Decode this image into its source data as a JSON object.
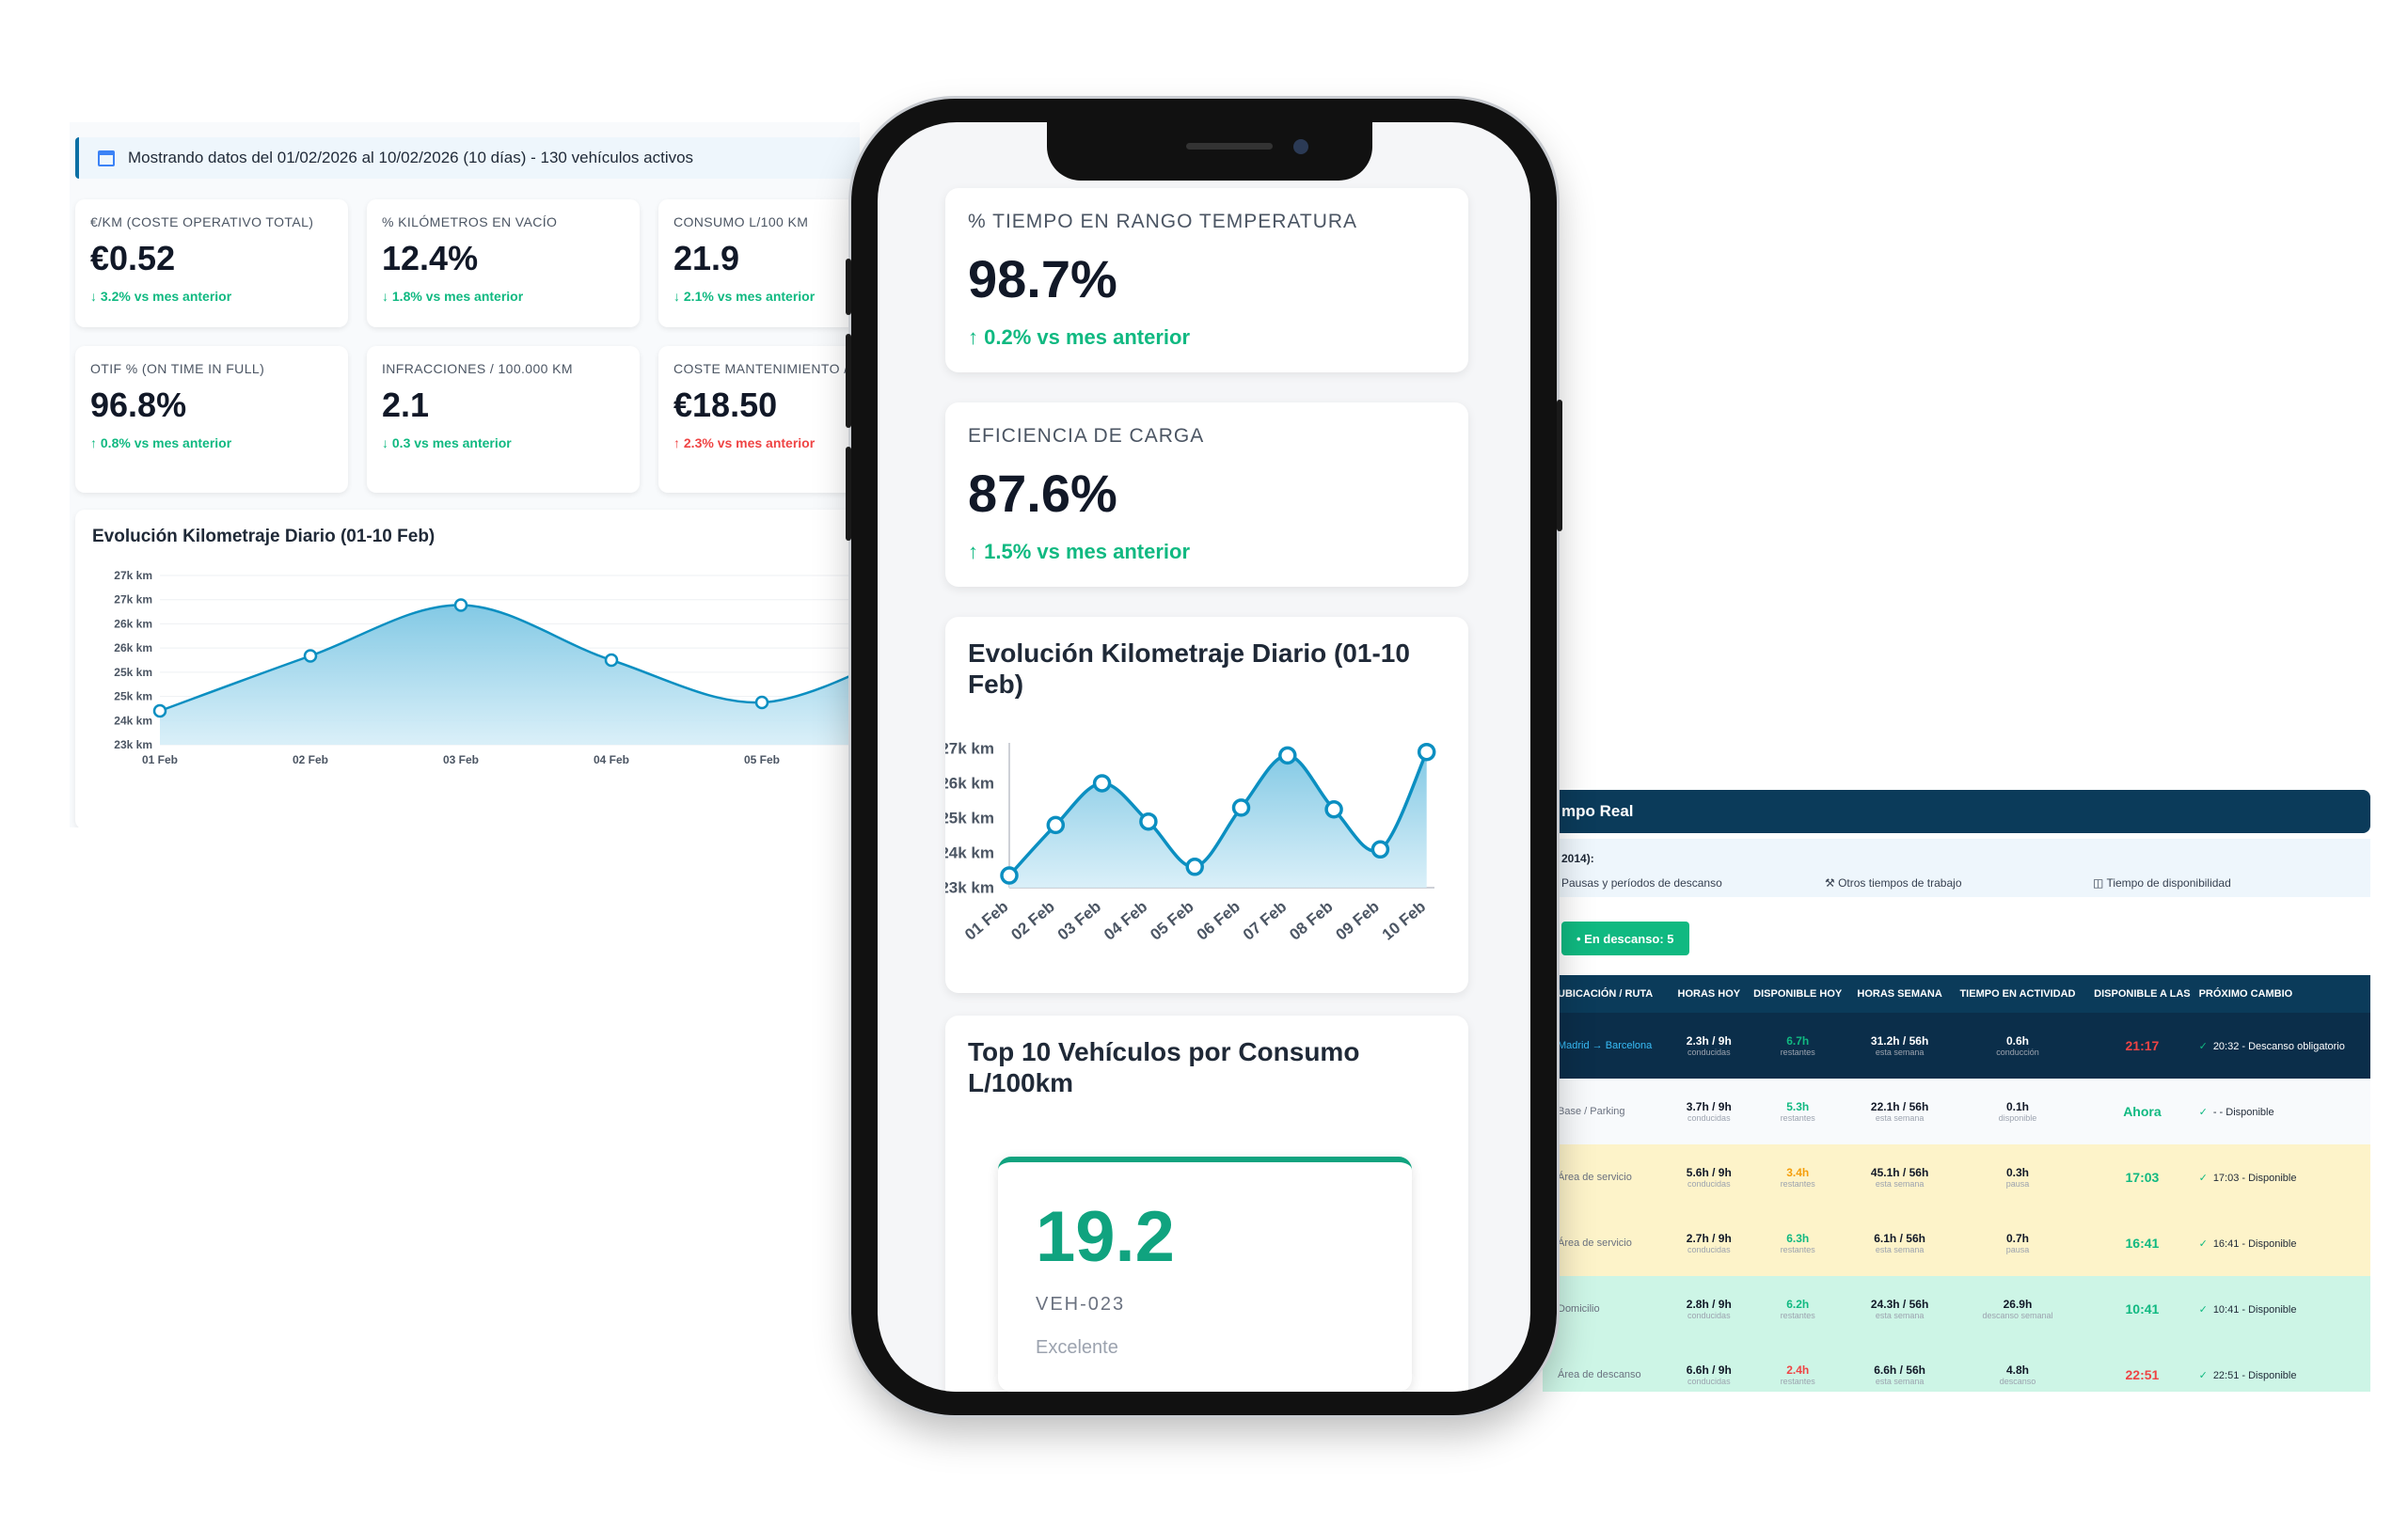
{
  "left": {
    "info": "Mostrando datos del 01/02/2026 al 10/02/2026 (10 días) - 130 vehículos activos",
    "kpis": [
      {
        "label": "€/KM (COSTE OPERATIVO TOTAL)",
        "value": "€0.52",
        "change": "↓ 3.2% vs mes anterior"
      },
      {
        "label": "% KILÓMETROS EN VACÍO",
        "value": "12.4%",
        "change": "↓ 1.8% vs mes anterior"
      },
      {
        "label": "CONSUMO L/100 KM",
        "value": "21.9",
        "change": "↓ 2.1% vs mes anterior"
      },
      {
        "label": "OTIF % (ON TIME IN FULL)",
        "value": "96.8%",
        "change": "↑ 0.8% vs mes anterior"
      },
      {
        "label": "INFRACCIONES / 100.000 KM",
        "value": "2.1",
        "change": "↓ 0.3 vs mes anterior"
      },
      {
        "label": "COSTE MANTENIMIENTO / KM",
        "value": "€18.50",
        "change": "↑ 2.3% vs mes anterior"
      }
    ],
    "chart_title": "Evolución Kilometraje Diario (01-10 Feb)"
  },
  "chart_data": [
    {
      "type": "area",
      "title": "Evolución Kilometraje Diario (01-10 Feb)",
      "y_tick_labels": [
        "23k km",
        "24k km",
        "25k km",
        "25k km",
        "26k km",
        "26k km",
        "27k km",
        "27k km"
      ],
      "x": [
        "01 Feb",
        "02 Feb",
        "03 Feb",
        "04 Feb",
        "05 Feb"
      ],
      "values": [
        23800,
        25100,
        26300,
        25000,
        24000
      ],
      "ylim": [
        23000,
        27000
      ],
      "grid": true,
      "color": "#0b8fc1"
    },
    {
      "type": "area",
      "title": "Evolución Kilometraje Diario (01-10 Feb)",
      "y_tick_labels": [
        "23k km",
        "24k km",
        "25k km",
        "26k km",
        "27k km"
      ],
      "x": [
        "01 Feb",
        "02 Feb",
        "03 Feb",
        "04 Feb",
        "05 Feb",
        "06 Feb",
        "07 Feb",
        "08 Feb",
        "09 Feb",
        "10 Feb"
      ],
      "values": [
        23350,
        24800,
        26000,
        24900,
        23600,
        25300,
        26800,
        25250,
        24100,
        26900
      ],
      "ylim": [
        23000,
        27000
      ],
      "grid": false,
      "color": "#0b8fc1"
    }
  ],
  "phone": {
    "cards": [
      {
        "label": "% TIEMPO EN RANGO TEMPERATURA",
        "value": "98.7%",
        "change": "↑ 0.2% vs mes anterior"
      },
      {
        "label": "EFICIENCIA DE CARGA",
        "value": "87.6%",
        "change": "↑ 1.5% vs mes anterior"
      }
    ],
    "chart_title": "Evolución Kilometraje Diario (01-10 Feb)",
    "top10_title": "Top 10 Vehículos por Consumo L/100km",
    "vehicle": {
      "value": "19.2",
      "id": "VEH-023",
      "status": "Excelente"
    }
  },
  "right": {
    "header": "mpo Real",
    "legend_title": "2014):",
    "legend_items": [
      "Pausas y períodos de descanso",
      "⚒ Otros tiempos de trabajo",
      "◫ Tiempo de disponibilidad"
    ],
    "badge": "• En descanso: 5",
    "columns": [
      "UBICACIÓN / RUTA",
      "HORAS HOY",
      "DISPONIBLE HOY",
      "HORAS SEMANA",
      "TIEMPO EN ACTIVIDAD",
      "DISPONIBLE A LAS",
      "PRÓXIMO CAMBIO"
    ],
    "rows": [
      {
        "loc": "Madrid → Barcelona",
        "h": "2.3h / 9h",
        "hs": "conducidas",
        "d": "6.7h",
        "ds": "restantes",
        "w": "31.2h / 56h",
        "ws": "esta semana",
        "a": "0.6h",
        "as": "conducción",
        "at": "21:17",
        "next": "20:32 - Descanso obligatorio",
        "bg": "#0b2e4a",
        "dcol": "#10b981",
        "atcol": "#ef4444"
      },
      {
        "loc": "Base / Parking",
        "h": "3.7h / 9h",
        "hs": "conducidas",
        "d": "5.3h",
        "ds": "restantes",
        "w": "22.1h / 56h",
        "ws": "esta semana",
        "a": "0.1h",
        "as": "disponible",
        "at": "Ahora",
        "next": "- - Disponible",
        "bg": "#f8fafc",
        "dcol": "#10b981",
        "atcol": "#10b981"
      },
      {
        "loc": "Área de servicio",
        "h": "5.6h / 9h",
        "hs": "conducidas",
        "d": "3.4h",
        "ds": "restantes",
        "w": "45.1h / 56h",
        "ws": "esta semana",
        "a": "0.3h",
        "as": "pausa",
        "at": "17:03",
        "next": "17:03 - Disponible",
        "bg": "#fdf3c9",
        "dcol": "#f59e0b",
        "atcol": "#10b981"
      },
      {
        "loc": "Área de servicio",
        "h": "2.7h / 9h",
        "hs": "conducidas",
        "d": "6.3h",
        "ds": "restantes",
        "w": "6.1h / 56h",
        "ws": "esta semana",
        "a": "0.7h",
        "as": "pausa",
        "at": "16:41",
        "next": "16:41 - Disponible",
        "bg": "#fdf3c9",
        "dcol": "#10b981",
        "atcol": "#10b981"
      },
      {
        "loc": "Domicilio",
        "h": "2.8h / 9h",
        "hs": "conducidas",
        "d": "6.2h",
        "ds": "restantes",
        "w": "24.3h / 56h",
        "ws": "esta semana",
        "a": "26.9h",
        "as": "descanso semanal",
        "at": "10:41",
        "next": "10:41 - Disponible",
        "bg": "#cdf5e6",
        "dcol": "#10b981",
        "atcol": "#10b981"
      },
      {
        "loc": "Área de descanso",
        "h": "6.6h / 9h",
        "hs": "conducidas",
        "d": "2.4h",
        "ds": "restantes",
        "w": "6.6h / 56h",
        "ws": "esta semana",
        "a": "4.8h",
        "as": "descanso",
        "at": "22:51",
        "next": "22:51 - Disponible",
        "bg": "#cdf5e6",
        "dcol": "#ef4444",
        "atcol": "#ef4444"
      }
    ]
  }
}
